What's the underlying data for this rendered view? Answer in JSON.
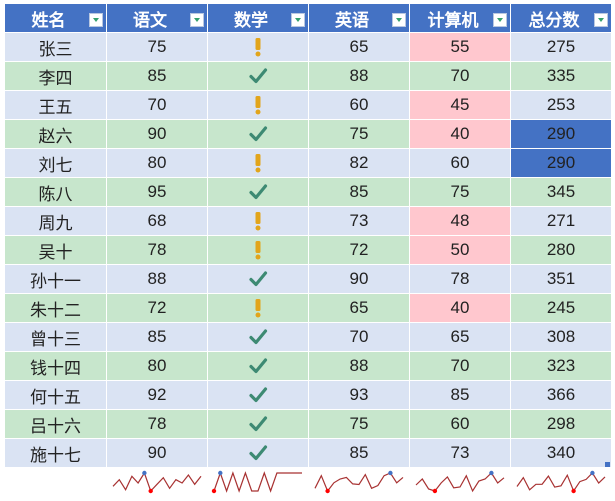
{
  "headers": [
    "姓名",
    "语文",
    "数学",
    "英语",
    "计算机",
    "总分数"
  ],
  "rows": [
    {
      "name": "张三",
      "chinese": "75",
      "math": "warn",
      "english": "65",
      "computer": "55",
      "total": "275"
    },
    {
      "name": "李四",
      "chinese": "85",
      "math": "check",
      "english": "88",
      "computer": "70",
      "total": "335"
    },
    {
      "name": "王五",
      "chinese": "70",
      "math": "warn",
      "english": "60",
      "computer": "45",
      "total": "253"
    },
    {
      "name": "赵六",
      "chinese": "90",
      "math": "check",
      "english": "75",
      "computer": "40",
      "total": "290"
    },
    {
      "name": "刘七",
      "chinese": "80",
      "math": "warn",
      "english": "82",
      "computer": "60",
      "total": "290"
    },
    {
      "name": "陈八",
      "chinese": "95",
      "math": "check",
      "english": "85",
      "computer": "75",
      "total": "345"
    },
    {
      "name": "周九",
      "chinese": "68",
      "math": "warn",
      "english": "73",
      "computer": "48",
      "total": "271"
    },
    {
      "name": "吴十",
      "chinese": "78",
      "math": "warn",
      "english": "72",
      "computer": "50",
      "total": "280"
    },
    {
      "name": "孙十一",
      "chinese": "88",
      "math": "check",
      "english": "90",
      "computer": "78",
      "total": "351"
    },
    {
      "name": "朱十二",
      "chinese": "72",
      "math": "warn",
      "english": "65",
      "computer": "40",
      "total": "245"
    },
    {
      "name": "曾十三",
      "chinese": "85",
      "math": "check",
      "english": "70",
      "computer": "65",
      "total": "308"
    },
    {
      "name": "钱十四",
      "chinese": "80",
      "math": "check",
      "english": "88",
      "computer": "70",
      "total": "323"
    },
    {
      "name": "何十五",
      "chinese": "92",
      "math": "check",
      "english": "93",
      "computer": "85",
      "total": "366"
    },
    {
      "name": "吕十六",
      "chinese": "78",
      "math": "check",
      "english": "75",
      "computer": "60",
      "total": "298"
    },
    {
      "name": "施十七",
      "chinese": "90",
      "math": "check",
      "english": "85",
      "computer": "73",
      "total": "340"
    }
  ],
  "icons": {
    "check": "check-icon",
    "warn": "exclamation-icon"
  },
  "conditional": {
    "computer_low_below": 60,
    "total_red_below": 300,
    "selected_total_rows": [
      3,
      4
    ]
  },
  "colors": {
    "header_bg": "#4472c4",
    "band_odd": "#dae3f3",
    "band_even": "#c7e6cc",
    "low_fill": "#ffc7ce",
    "low_text": "#9c0006",
    "red_text": "#e0405a",
    "check": "#3d8a73",
    "warn": "#e2a51b",
    "sparkline": "#a83232",
    "spark_low": "#ff0000",
    "spark_high": "#4472c4"
  },
  "sparkline_columns": [
    "chinese",
    "math",
    "english",
    "computer",
    "total"
  ]
}
